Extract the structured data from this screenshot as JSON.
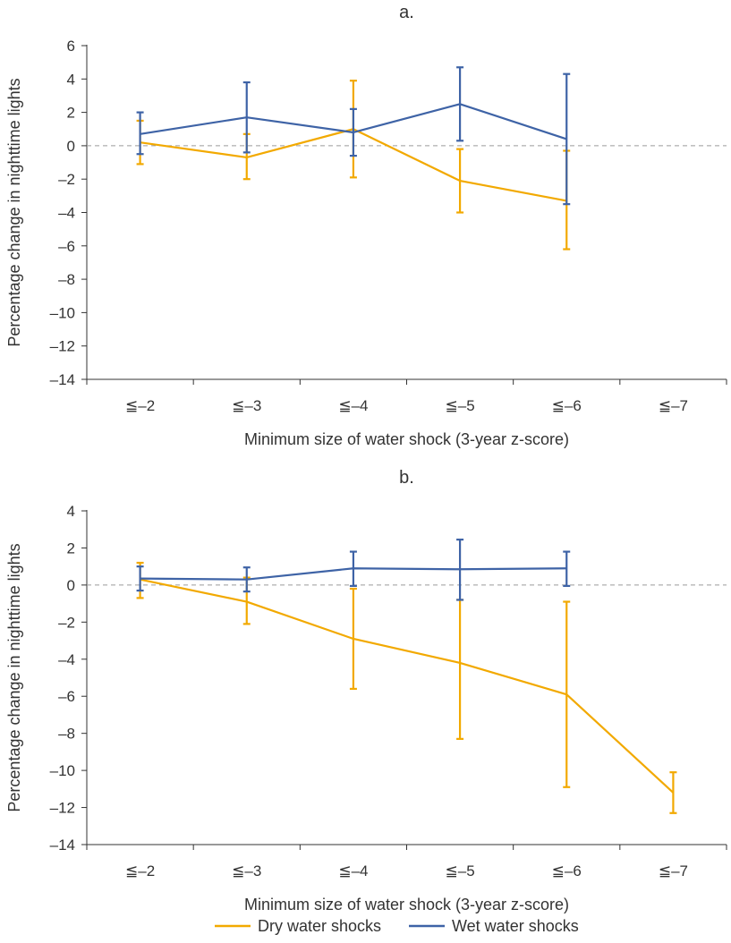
{
  "chart_data": [
    {
      "type": "line",
      "title": "a.",
      "xlabel": "Minimum size of water shock (3-year z-score)",
      "ylabel": "Percentage change in nighttime lights",
      "categories": [
        "≦–2",
        "≦–3",
        "≦–4",
        "≦–5",
        "≦–6",
        "≦–7"
      ],
      "ylim": [
        -14,
        6
      ],
      "yticks": [
        6,
        4,
        2,
        0,
        -2,
        -4,
        -6,
        -8,
        -10,
        -12,
        -14
      ],
      "ytick_labels": [
        "6",
        "4",
        "2",
        "0",
        "–2",
        "–4",
        "–6",
        "–8",
        "–10",
        "–12",
        "–14"
      ],
      "reference_line": 0,
      "series": [
        {
          "name": "Dry water shocks",
          "color": "#F2A900",
          "values": [
            0.2,
            -0.7,
            1.0,
            -2.1,
            -3.3,
            null
          ],
          "ci_low": [
            -1.1,
            -2.0,
            -1.9,
            -4.0,
            -6.2,
            null
          ],
          "ci_high": [
            1.5,
            0.7,
            3.9,
            -0.2,
            -0.3,
            null
          ]
        },
        {
          "name": "Wet water shocks",
          "color": "#3E63A6",
          "values": [
            0.7,
            1.7,
            0.8,
            2.5,
            0.4,
            null
          ],
          "ci_low": [
            -0.5,
            -0.4,
            -0.6,
            0.3,
            -3.5,
            null
          ],
          "ci_high": [
            2.0,
            3.8,
            2.2,
            4.7,
            4.3,
            null
          ]
        }
      ]
    },
    {
      "type": "line",
      "title": "b.",
      "xlabel": "Minimum size of water shock (3-year z-score)",
      "ylabel": "Percentage change in nighttime lights",
      "categories": [
        "≦–2",
        "≦–3",
        "≦–4",
        "≦–5",
        "≦–6",
        "≦–7"
      ],
      "ylim": [
        -14,
        4
      ],
      "yticks": [
        4,
        2,
        0,
        -2,
        -4,
        -6,
        -8,
        -10,
        -12,
        -14
      ],
      "ytick_labels": [
        "4",
        "2",
        "0",
        "–2",
        "–4",
        "–6",
        "–8",
        "–10",
        "–12",
        "–14"
      ],
      "reference_line": 0,
      "series": [
        {
          "name": "Dry water shocks",
          "color": "#F2A900",
          "values": [
            0.3,
            -0.9,
            -2.9,
            -4.2,
            -5.9,
            -11.2
          ],
          "ci_low": [
            -0.7,
            -2.1,
            -5.6,
            -8.3,
            -10.9,
            -12.3
          ],
          "ci_high": [
            1.2,
            0.4,
            -0.2,
            -0.8,
            -0.9,
            -10.1
          ]
        },
        {
          "name": "Wet water shocks",
          "color": "#3E63A6",
          "values": [
            0.35,
            0.3,
            0.9,
            0.85,
            0.9,
            null
          ],
          "ci_low": [
            -0.3,
            -0.35,
            -0.05,
            -0.8,
            -0.05,
            null
          ],
          "ci_high": [
            1.0,
            0.95,
            1.8,
            2.45,
            1.8,
            null
          ]
        }
      ]
    }
  ],
  "legend": {
    "placement": "bottom-center",
    "items": [
      {
        "label": "Dry water shocks",
        "color": "#F2A900"
      },
      {
        "label": "Wet water shocks",
        "color": "#3E63A6"
      }
    ]
  }
}
